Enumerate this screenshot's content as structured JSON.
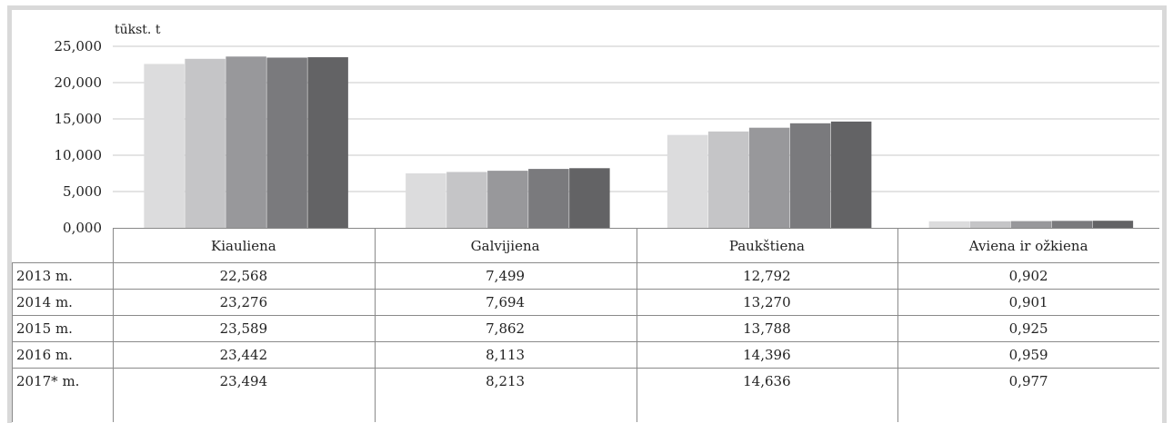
{
  "chart_data": {
    "type": "bar",
    "unit_label": "tūkst. t",
    "categories": [
      "Kiauliena",
      "Galvijiena",
      "Paukštiena",
      "Aviena ir ožkiena"
    ],
    "series": [
      {
        "name": "2013 m.",
        "values": [
          22.568,
          7.499,
          12.792,
          0.902
        ],
        "labels": [
          "22,568",
          "7,499",
          "12,792",
          "0,902"
        ],
        "color": "#dcdcdd"
      },
      {
        "name": "2014 m.",
        "values": [
          23.276,
          7.694,
          13.27,
          0.901
        ],
        "labels": [
          "23,276",
          "7,694",
          "13,270",
          "0,901"
        ],
        "color": "#c5c5c7"
      },
      {
        "name": "2015 m.",
        "values": [
          23.589,
          7.862,
          13.788,
          0.925
        ],
        "labels": [
          "23,589",
          "7,862",
          "13,788",
          "0,925"
        ],
        "color": "#98989b"
      },
      {
        "name": "2016 m.",
        "values": [
          23.442,
          8.113,
          14.396,
          0.959
        ],
        "labels": [
          "23,442",
          "8,113",
          "14,396",
          "0,959"
        ],
        "color": "#7a7a7d"
      },
      {
        "name": "2017* m.",
        "values": [
          23.494,
          8.213,
          14.636,
          0.977
        ],
        "labels": [
          "23,494",
          "8,213",
          "14,636",
          "0,977"
        ],
        "color": "#636365"
      }
    ],
    "yticks": [
      "0,000",
      "5,000",
      "10,000",
      "15,000",
      "20,000",
      "25,000"
    ],
    "ylim": [
      0,
      25
    ],
    "ytick_step": 5,
    "grid": true,
    "legend": "data table below chart"
  }
}
